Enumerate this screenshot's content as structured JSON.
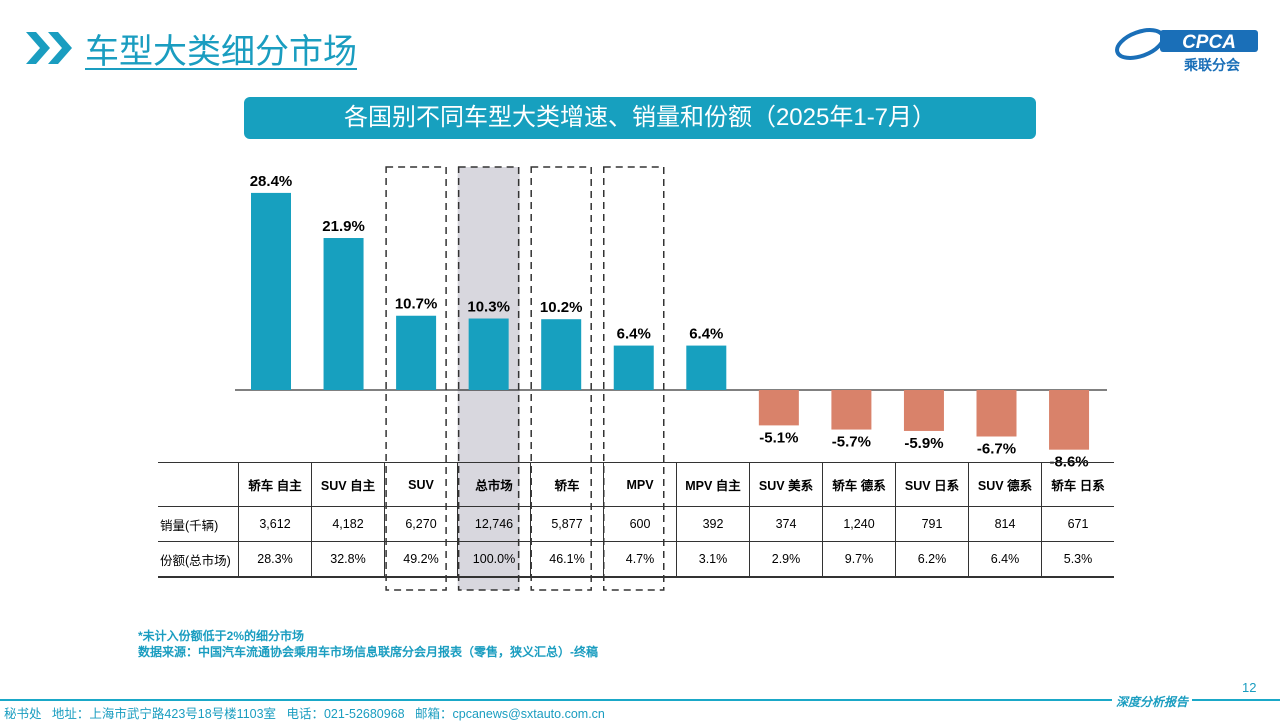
{
  "header": {
    "title": "车型大类细分市场",
    "logo_text": "CPCA",
    "logo_subtext": "乘联分会"
  },
  "banner": "各国别不同车型大类增速、销量和份额（2025年1-7月）",
  "chart_data": {
    "type": "bar",
    "categories": [
      "轿车 自主",
      "SUV 自主",
      "SUV",
      "总市场",
      "轿车",
      "MPV",
      "MPV 自主",
      "SUV 美系",
      "轿车 德系",
      "SUV 日系",
      "SUV 德系",
      "轿车 日系"
    ],
    "values": [
      28.4,
      21.9,
      10.7,
      10.3,
      10.2,
      6.4,
      6.4,
      -5.1,
      -5.7,
      -5.9,
      -6.7,
      -8.6
    ],
    "labels": [
      "28.4%",
      "21.9%",
      "10.7%",
      "10.3%",
      "10.2%",
      "6.4%",
      "6.4%",
      "-5.1%",
      "-5.7%",
      "-5.9%",
      "-6.7%",
      "-8.6%"
    ],
    "unit": "%",
    "colors": {
      "positive": "#17a0bf",
      "negative": "#d9826a",
      "highlight": "#d8d7de"
    },
    "highlighted": [
      "SUV",
      "总市场",
      "轿车",
      "MPV"
    ],
    "grid": false
  },
  "table": {
    "headers": [
      "轿车 自主",
      "SUV 自主",
      "SUV",
      "总市场",
      "轿车",
      "MPV",
      "MPV 自主",
      "SUV 美系",
      "轿车 德系",
      "SUV 日系",
      "SUV 德系",
      "轿车 日系"
    ],
    "rows": [
      {
        "label": "销量(千辆)",
        "values": [
          "3,612",
          "4,182",
          "6,270",
          "12,746",
          "5,877",
          "600",
          "392",
          "374",
          "1,240",
          "791",
          "814",
          "671"
        ]
      },
      {
        "label": "份额(总市场)",
        "values": [
          "28.3%",
          "32.8%",
          "49.2%",
          "100.0%",
          "46.1%",
          "4.7%",
          "3.1%",
          "2.9%",
          "9.7%",
          "6.2%",
          "6.4%",
          "5.3%"
        ]
      }
    ]
  },
  "notes": [
    "*未计入份额低于2%的细分市场",
    "数据来源：中国汽车流通协会乘用车市场信息联席分会月报表（零售，狭义汇总）-终稿"
  ],
  "footer": {
    "address": "秘书处   地址：上海市武宁路423号18号楼1103室   电话：021-52680968   邮箱：cpcanews@sxtauto.com.cn",
    "tag": "深度分析报告",
    "page": "12"
  }
}
